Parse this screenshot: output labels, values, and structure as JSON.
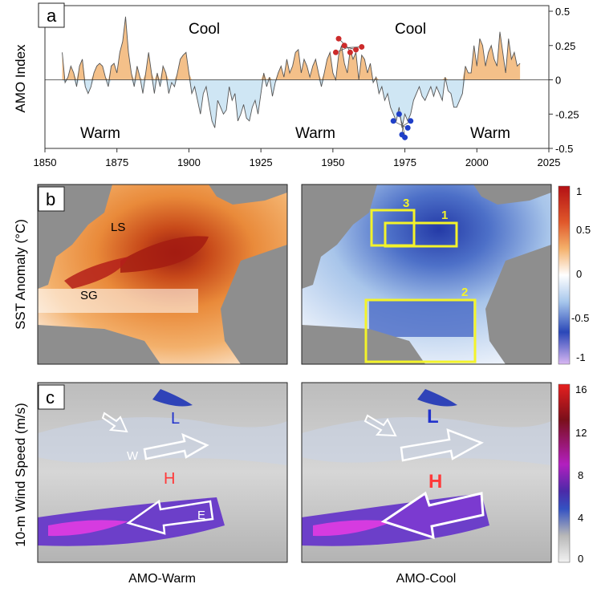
{
  "colors": {
    "warm_fill": "#f4c089",
    "cool_fill": "#cfe6f4",
    "red_dot": "#cc2b2b",
    "blue_dot": "#1f3fc8",
    "box_yellow": "#f3f32a",
    "land": "#8e8e8e",
    "wind_h": "#ff3a3a",
    "wind_l": "#2233cc"
  },
  "panel_a": {
    "letter": "a",
    "ylabel": "AMO Index",
    "labels": {
      "cool_left": "Cool",
      "cool_right": "Cool",
      "warm_left": "Warm",
      "warm_mid": "Warm",
      "warm_right": "Warm"
    }
  },
  "panel_b": {
    "letter": "b",
    "ylabel": "SST Anomaly (°C)",
    "map_labels": {
      "ls": "LS",
      "sg": "SG"
    },
    "boxes": [
      "1",
      "2",
      "3"
    ],
    "colorbar_ticks": [
      "1",
      "0.5",
      "0",
      "-0.5",
      "-1"
    ]
  },
  "panel_c": {
    "letter": "c",
    "ylabel": "10-m Wind Speed (m/s)",
    "labels": {
      "l": "L",
      "h": "H",
      "w": "W",
      "e": "E"
    },
    "colorbar_ticks": [
      "16",
      "12",
      "8",
      "4",
      "0"
    ],
    "xlabels": {
      "left": "AMO-Warm",
      "right": "AMO-Cool"
    }
  },
  "chart_data": {
    "type": "area",
    "xlabel": "",
    "ylabel": "AMO Index",
    "xlim": [
      1850,
      2025
    ],
    "ylim": [
      -0.5,
      0.5
    ],
    "x_ticks": [
      1850,
      1875,
      1900,
      1925,
      1950,
      1975,
      2000,
      2025
    ],
    "y_ticks": [
      0.5,
      0.25,
      0,
      -0.25,
      -0.5
    ],
    "y_tick_labels": [
      "0.5",
      "0.25",
      "0",
      "-0.25",
      "-0.5"
    ],
    "grid": false,
    "x": [
      1856,
      1857,
      1858,
      1859,
      1860,
      1861,
      1862,
      1863,
      1864,
      1865,
      1866,
      1867,
      1868,
      1869,
      1870,
      1871,
      1872,
      1873,
      1874,
      1875,
      1876,
      1877,
      1878,
      1879,
      1880,
      1881,
      1882,
      1883,
      1884,
      1885,
      1886,
      1887,
      1888,
      1889,
      1890,
      1891,
      1892,
      1893,
      1894,
      1895,
      1896,
      1897,
      1898,
      1899,
      1900,
      1901,
      1902,
      1903,
      1904,
      1905,
      1906,
      1907,
      1908,
      1909,
      1910,
      1911,
      1912,
      1913,
      1914,
      1915,
      1916,
      1917,
      1918,
      1919,
      1920,
      1921,
      1922,
      1923,
      1924,
      1925,
      1926,
      1927,
      1928,
      1929,
      1930,
      1931,
      1932,
      1933,
      1934,
      1935,
      1936,
      1937,
      1938,
      1939,
      1940,
      1941,
      1942,
      1943,
      1944,
      1945,
      1946,
      1947,
      1948,
      1949,
      1950,
      1951,
      1952,
      1953,
      1954,
      1955,
      1956,
      1957,
      1958,
      1959,
      1960,
      1961,
      1962,
      1963,
      1964,
      1965,
      1966,
      1967,
      1968,
      1969,
      1970,
      1971,
      1972,
      1973,
      1974,
      1975,
      1976,
      1977,
      1978,
      1979,
      1980,
      1981,
      1982,
      1983,
      1984,
      1985,
      1986,
      1987,
      1988,
      1989,
      1990,
      1991,
      1992,
      1993,
      1994,
      1995,
      1996,
      1997,
      1998,
      1999,
      2000,
      2001,
      2002,
      2003,
      2004,
      2005,
      2006,
      2007,
      2008,
      2009,
      2010,
      2011,
      2012,
      2013,
      2014,
      2015
    ],
    "values": [
      0.2,
      -0.02,
      0.02,
      0.1,
      0.05,
      -0.05,
      0.1,
      0.15,
      -0.05,
      -0.1,
      -0.05,
      0.05,
      0.1,
      0.12,
      0.1,
      0.02,
      -0.05,
      0.1,
      0.12,
      0.05,
      0.2,
      0.28,
      0.46,
      0.2,
      0.05,
      -0.05,
      0.1,
      0.02,
      -0.1,
      0.05,
      0.2,
      0.05,
      -0.1,
      0.05,
      -0.05,
      0.1,
      0.05,
      -0.1,
      -0.02,
      -0.05,
      0.05,
      0.15,
      0.18,
      0.2,
      0.05,
      -0.1,
      -0.05,
      -0.15,
      -0.25,
      -0.1,
      -0.05,
      -0.18,
      -0.3,
      -0.35,
      -0.15,
      -0.2,
      -0.25,
      -0.22,
      -0.05,
      -0.15,
      -0.1,
      -0.3,
      -0.25,
      -0.18,
      -0.28,
      -0.3,
      -0.2,
      -0.15,
      -0.25,
      -0.1,
      0.05,
      -0.05,
      0.02,
      -0.12,
      -0.02,
      0.05,
      0.1,
      0.02,
      0.15,
      0.05,
      0.1,
      0.2,
      0.22,
      0.05,
      0.15,
      0.1,
      0.02,
      0.1,
      0.15,
      0.05,
      -0.05,
      0.05,
      0.15,
      0.2,
      0.05,
      0.0,
      0.18,
      0.25,
      0.12,
      0.05,
      0.22,
      0.15,
      0.2,
      0.0,
      0.18,
      0.15,
      0.05,
      0.12,
      -0.02,
      0.02,
      -0.1,
      -0.05,
      -0.15,
      -0.1,
      -0.2,
      -0.25,
      -0.3,
      -0.2,
      -0.35,
      -0.25,
      -0.3,
      -0.25,
      -0.15,
      -0.1,
      -0.05,
      -0.12,
      -0.15,
      -0.1,
      -0.05,
      -0.12,
      -0.05,
      -0.1,
      -0.15,
      0.02,
      -0.08,
      -0.1,
      -0.2,
      -0.2,
      -0.15,
      -0.1,
      0.1,
      0.05,
      0.05,
      0.25,
      0.1,
      0.3,
      0.25,
      0.1,
      0.2,
      0.25,
      0.15,
      0.1,
      0.35,
      0.2,
      0.05,
      0.3,
      0.15,
      0.2,
      0.1,
      0.12
    ],
    "markers": {
      "red": [
        [
          1951,
          0.2
        ],
        [
          1952,
          0.3
        ],
        [
          1954,
          0.25
        ],
        [
          1956,
          0.2
        ],
        [
          1958,
          0.22
        ],
        [
          1960,
          0.24
        ]
      ],
      "blue": [
        [
          1971,
          -0.3
        ],
        [
          1973,
          -0.25
        ],
        [
          1974,
          -0.4
        ],
        [
          1976,
          -0.35
        ],
        [
          1977,
          -0.3
        ],
        [
          1975,
          -0.42
        ]
      ]
    }
  }
}
